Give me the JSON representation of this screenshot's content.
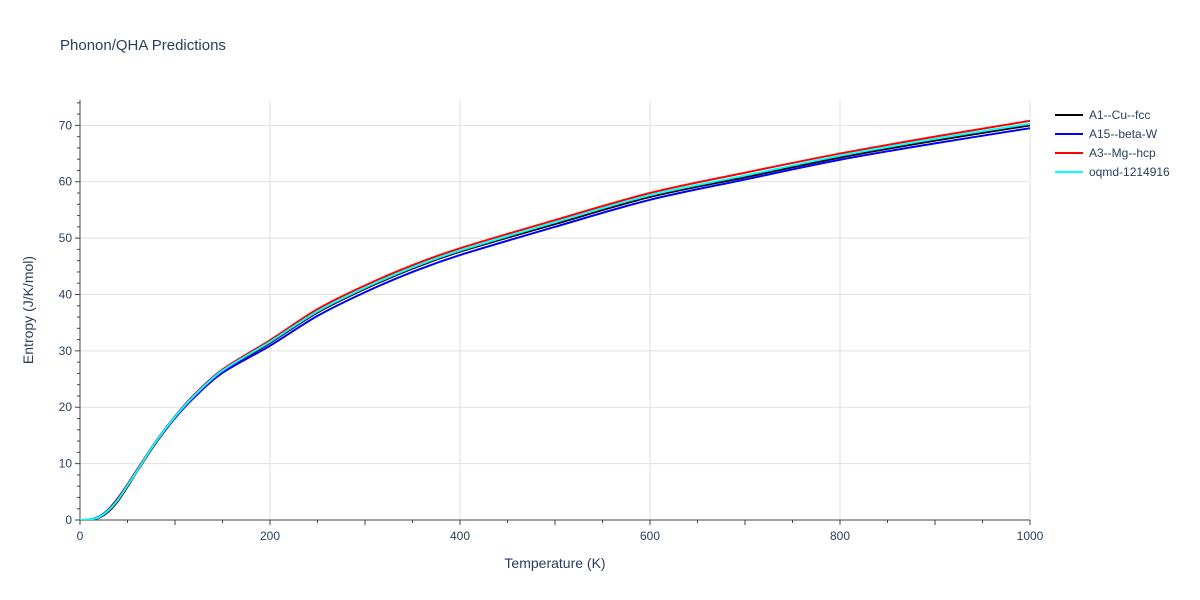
{
  "chart_data": {
    "type": "line",
    "title": "Phonon/QHA Predictions",
    "xlabel": "Temperature (K)",
    "ylabel": "Entropy (J/K/mol)",
    "xlim": [
      0,
      1000
    ],
    "ylim": [
      0,
      74.5
    ],
    "x_ticks": [
      0,
      200,
      400,
      600,
      800,
      1000
    ],
    "y_ticks": [
      0,
      10,
      20,
      30,
      40,
      50,
      60,
      70
    ],
    "grid": true,
    "legend_position": "right",
    "x": [
      0,
      10,
      20,
      30,
      40,
      50,
      60,
      80,
      100,
      120,
      150,
      200,
      250,
      300,
      350,
      400,
      500,
      600,
      700,
      800,
      900,
      1000
    ],
    "series": [
      {
        "name": "A1--Cu--fcc",
        "color": "#000000",
        "values": [
          0,
          0.05,
          0.4,
          1.5,
          3.4,
          5.9,
          8.6,
          13.7,
          18.1,
          21.8,
          26.3,
          31.4,
          36.8,
          41.0,
          44.6,
          47.6,
          52.5,
          57.3,
          60.8,
          64.3,
          67.3,
          70.0
        ]
      },
      {
        "name": "A15--beta-W",
        "color": "#0000ff",
        "values": [
          0,
          0.1,
          0.6,
          1.9,
          3.9,
          6.3,
          8.9,
          13.8,
          18.1,
          21.7,
          26.1,
          30.9,
          36.2,
          40.4,
          44.0,
          47.0,
          52.0,
          56.8,
          60.4,
          63.9,
          66.8,
          69.5
        ]
      },
      {
        "name": "A3--Mg--hcp",
        "color": "#ff0000",
        "values": [
          0,
          0.08,
          0.5,
          1.8,
          3.8,
          6.3,
          8.9,
          14.0,
          18.4,
          22.2,
          26.7,
          31.9,
          37.4,
          41.6,
          45.2,
          48.2,
          53.2,
          58.0,
          61.6,
          65.0,
          68.0,
          70.8
        ]
      },
      {
        "name": "oqmd-1214916",
        "color": "#00ffff",
        "values": [
          0,
          0.07,
          0.5,
          1.7,
          3.6,
          6.1,
          8.7,
          13.9,
          18.3,
          22.0,
          26.5,
          31.6,
          37.0,
          41.2,
          44.8,
          47.8,
          52.8,
          57.6,
          61.1,
          64.6,
          67.6,
          70.3
        ]
      }
    ]
  }
}
